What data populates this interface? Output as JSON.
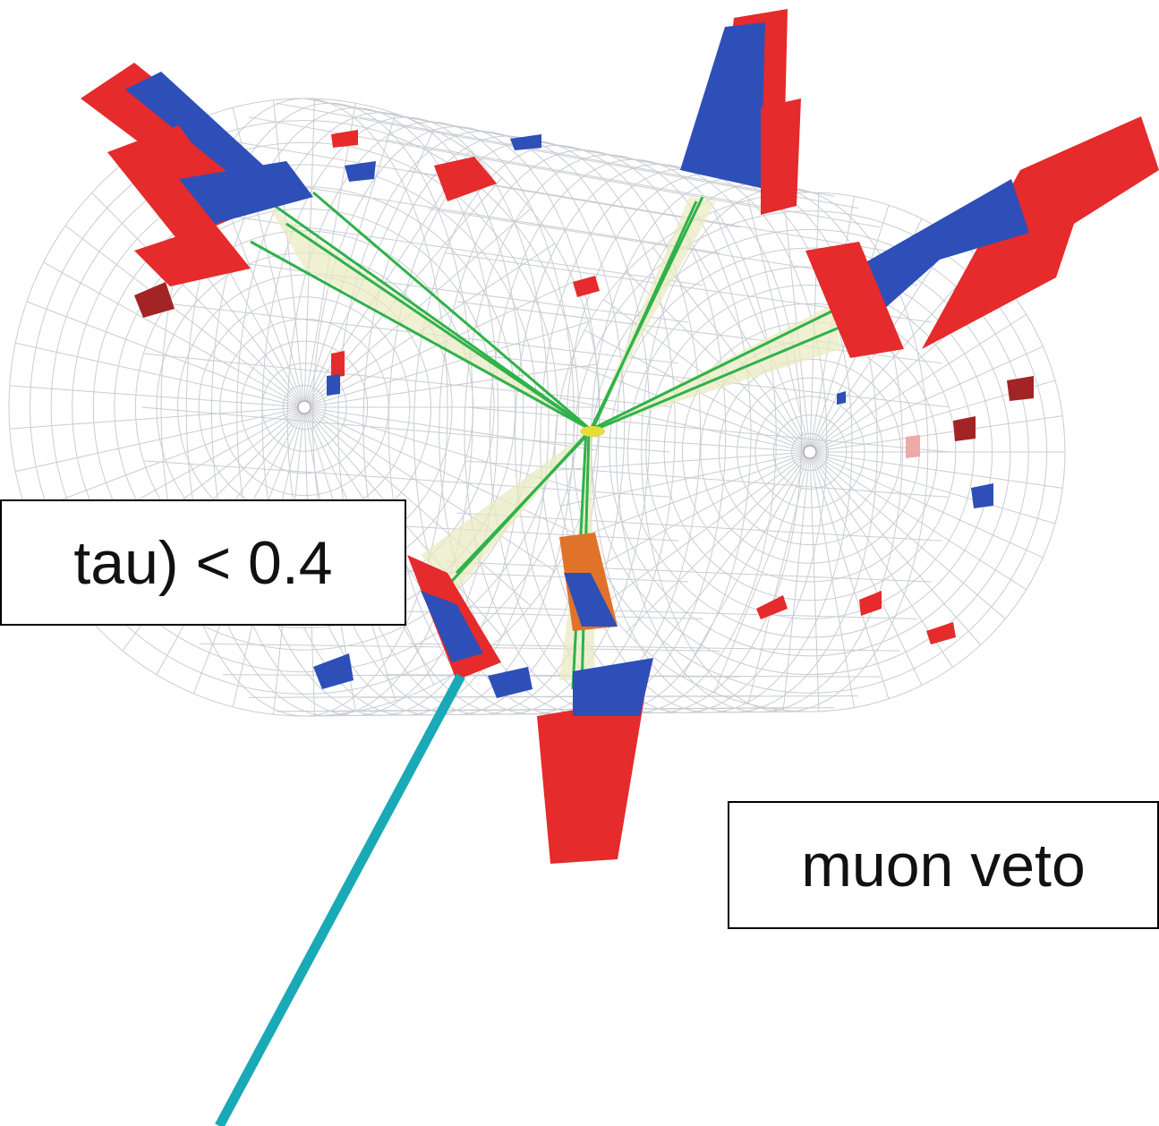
{
  "labels": [
    "tau) < 0.4",
    "muon veto"
  ]
}
